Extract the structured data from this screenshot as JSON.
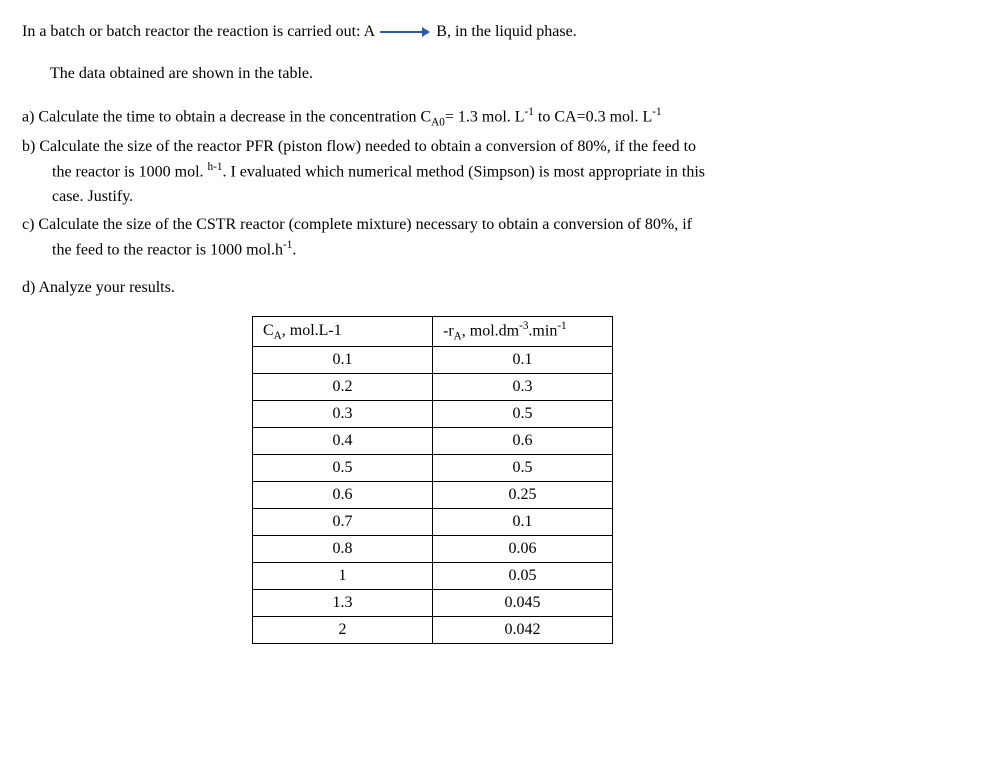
{
  "problem": {
    "intro_prefix": "In a batch or batch reactor the reaction is carried out: A",
    "intro_suffix": "B, in the liquid phase.",
    "data_intro": "The data obtained are shown in the table.",
    "part_a_prefix": "a) Calculate the time to obtain a decrease in   the concentration  C",
    "part_a_sub1": "A0",
    "part_a_mid1": "= 1.3 mol. L",
    "part_a_sup1": "-1",
    "part_a_mid2": " to CA=0.3 mol.  L",
    "part_a_sup2": "-1",
    "part_b_line1": "b) Calculate the size of the reactor PFR (piston flow) needed to obtain a conversion  of 80%, if the feed to",
    "part_b_line2_prefix": "the  reactor is 1000 mol. ",
    "part_b_line2_sup": "h-1",
    "part_b_line2_suffix": ".  I evaluated which numerical method (Simpson) is most appropriate in this",
    "part_b_line3": "case.   Justify.",
    "part_c_line1": "c) Calculate the size of the CSTR reactor (complete mixture) necessary to obtain a conversion of 80%, if",
    "part_c_line2": "the feed to the reactor is 1000 mol.h",
    "part_c_sup": "-1",
    "part_c_suffix": ".",
    "part_d": "d) Analyze your results."
  },
  "table": {
    "header_col1_prefix": "C",
    "header_col1_sub": "A",
    "header_col1_suffix": ", mol.L-1",
    "header_col2_prefix": "-r",
    "header_col2_sub": "A",
    "header_col2_mid": ", mol.dm",
    "header_col2_sup1": "-3",
    "header_col2_mid2": ".min",
    "header_col2_sup2": "-1",
    "rows": [
      {
        "ca": "0.1",
        "ra": "0.1"
      },
      {
        "ca": "0.2",
        "ra": "0.3"
      },
      {
        "ca": "0.3",
        "ra": "0.5"
      },
      {
        "ca": "0.4",
        "ra": "0.6"
      },
      {
        "ca": "0.5",
        "ra": "0.5"
      },
      {
        "ca": "0.6",
        "ra": "0.25"
      },
      {
        "ca": "0.7",
        "ra": "0.1"
      },
      {
        "ca": "0.8",
        "ra": "0.06"
      },
      {
        "ca": "1",
        "ra": "0.05"
      },
      {
        "ca": "1.3",
        "ra": "0.045"
      },
      {
        "ca": "2",
        "ra": "0.042"
      }
    ]
  },
  "colors": {
    "text": "#000000",
    "arrow": "#2e5aa8",
    "background": "#ffffff",
    "border": "#000000"
  }
}
